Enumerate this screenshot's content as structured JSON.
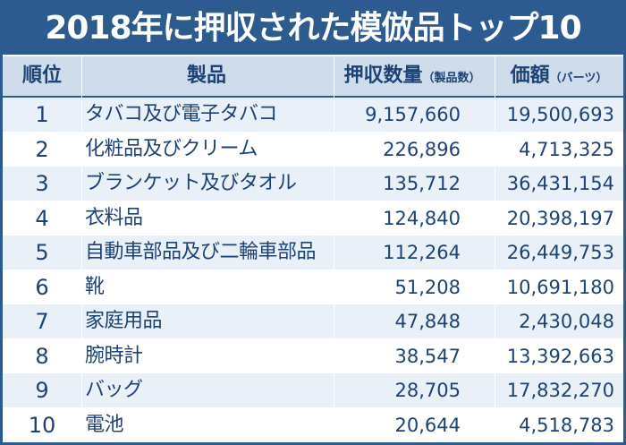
{
  "title": "2018年に押収された模倣品トップ10",
  "header": {
    "rank": "順位",
    "product": "製品",
    "quantity": "押収数量",
    "quantity_unit": "（製品数）",
    "value": "価額",
    "value_unit": "（バーツ）"
  },
  "rows": [
    {
      "rank": "1",
      "product": "タバコ及び電子タバコ",
      "quantity": "9,157,660",
      "value": "19,500,693"
    },
    {
      "rank": "2",
      "product": "化粧品及びクリーム",
      "quantity": "226,896",
      "value": "4,713,325"
    },
    {
      "rank": "3",
      "product": "ブランケット及びタオル",
      "quantity": "135,712",
      "value": "36,431,154"
    },
    {
      "rank": "4",
      "product": "衣料品",
      "quantity": "124,840",
      "value": "20,398,197"
    },
    {
      "rank": "5",
      "product": "自動車部品及び二輪車部品",
      "quantity": "112,264",
      "value": "26,449,753"
    },
    {
      "rank": "6",
      "product": "靴",
      "quantity": "51,208",
      "value": "10,691,180"
    },
    {
      "rank": "7",
      "product": "家庭用品",
      "quantity": "47,848",
      "value": "2,430,048"
    },
    {
      "rank": "8",
      "product": "腕時計",
      "quantity": "38,547",
      "value": "13,392,663"
    },
    {
      "rank": "9",
      "product": "バッグ",
      "quantity": "28,705",
      "value": "17,832,270"
    },
    {
      "rank": "10",
      "product": "電池",
      "quantity": "20,644",
      "value": "4,518,783"
    }
  ],
  "colors": {
    "primary": "#2d5a8f",
    "header_bg": "#cfdcec",
    "row_alt": "#eaf0f7",
    "text": "#1d4274"
  }
}
